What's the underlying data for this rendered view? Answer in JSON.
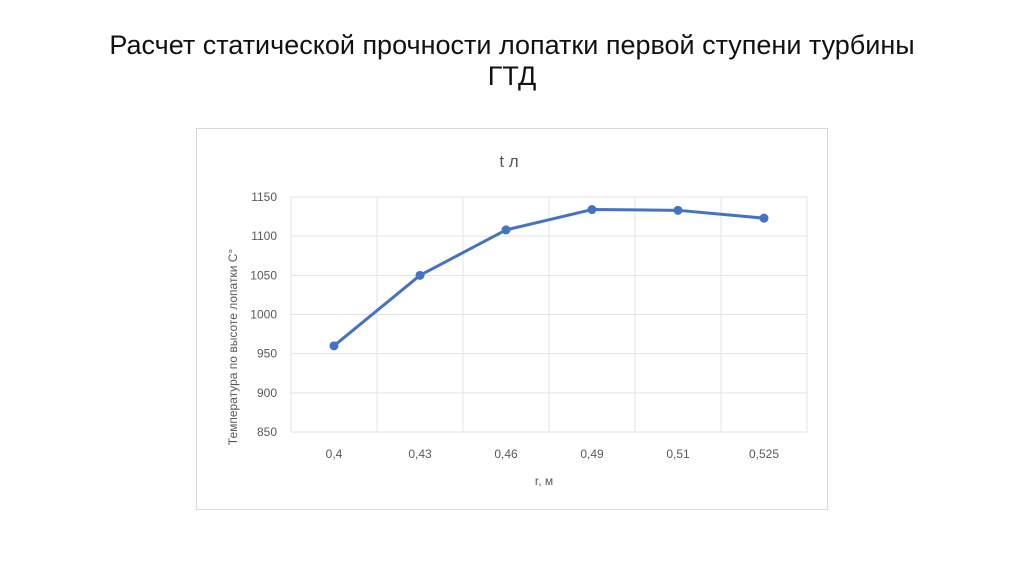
{
  "slide": {
    "title_line1": "Расчет статической прочности лопатки первой ступени турбины",
    "title_line2": "ГТД"
  },
  "chart_data": {
    "type": "line",
    "title": "t л",
    "xlabel": "r, м",
    "ylabel": "Температура по высоте лопатки С°",
    "categories": [
      "0,4",
      "0,43",
      "0,46",
      "0,49",
      "0,51",
      "0,525"
    ],
    "series": [
      {
        "values": [
          960,
          1050,
          1108,
          1134,
          1133,
          1123
        ]
      }
    ],
    "ylim": [
      850,
      1150
    ],
    "yticks": [
      850,
      900,
      950,
      1000,
      1050,
      1100,
      1150
    ],
    "grid": true,
    "legend": "none",
    "line_color": "#4472c4"
  }
}
